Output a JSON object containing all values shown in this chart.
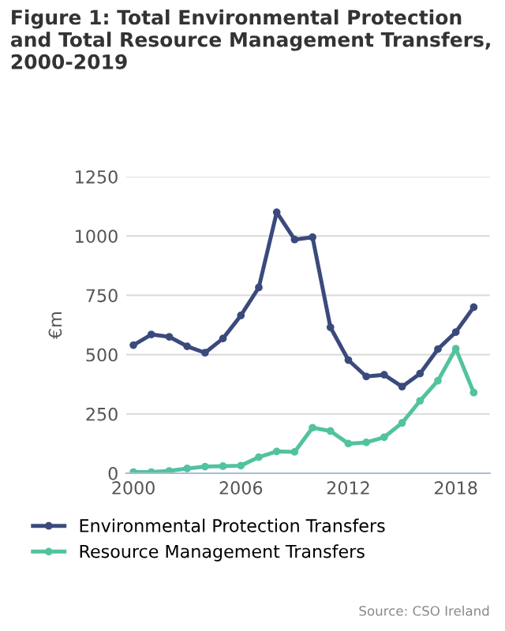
{
  "chart_data": {
    "type": "line",
    "title": "Figure 1: Total Environmental Protection and Total Resource Management Transfers, 2000-2019",
    "ylabel": "€m",
    "x": [
      2000,
      2001,
      2002,
      2003,
      2004,
      2005,
      2006,
      2007,
      2008,
      2009,
      2010,
      2011,
      2012,
      2013,
      2014,
      2015,
      2016,
      2017,
      2018,
      2019
    ],
    "series": [
      {
        "name": "Environmental Protection Transfers",
        "color": "#3b4a7c",
        "values": [
          540,
          585,
          575,
          535,
          508,
          568,
          665,
          783,
          1100,
          985,
          995,
          615,
          477,
          408,
          415,
          365,
          420,
          523,
          595,
          700
        ]
      },
      {
        "name": "Resource Management Transfers",
        "color": "#52c29f",
        "values": [
          5,
          5,
          10,
          20,
          28,
          30,
          32,
          68,
          92,
          90,
          192,
          178,
          125,
          130,
          152,
          212,
          305,
          390,
          525,
          340
        ]
      }
    ],
    "xlim": [
      1999.6,
      2019.9
    ],
    "xticks": [
      2000,
      2006,
      2012,
      2018
    ],
    "ylim": [
      0,
      1250
    ],
    "yticks": [
      0,
      250,
      500,
      750,
      1000,
      1250
    ],
    "grid": "y",
    "legend": "bottom",
    "marker": "circle",
    "line_style": "solid",
    "annotations": [
      "Source: CSO Ireland"
    ]
  }
}
